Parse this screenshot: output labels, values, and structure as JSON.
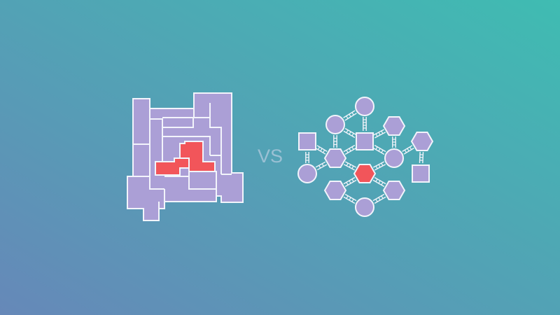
{
  "vs_text": "VS",
  "colors": {
    "background_start": "#6688b8",
    "background_end": "#3fbcb2",
    "tile_fill": "#ab9fd6",
    "highlight_fill": "#f2555a",
    "outline": "#f2f4fb"
  },
  "monolith": {
    "highlighted_tiles": 2
  },
  "network": {
    "node_shapes": [
      "circle",
      "square",
      "hexagon"
    ],
    "highlighted_node_shape": "hexagon"
  }
}
